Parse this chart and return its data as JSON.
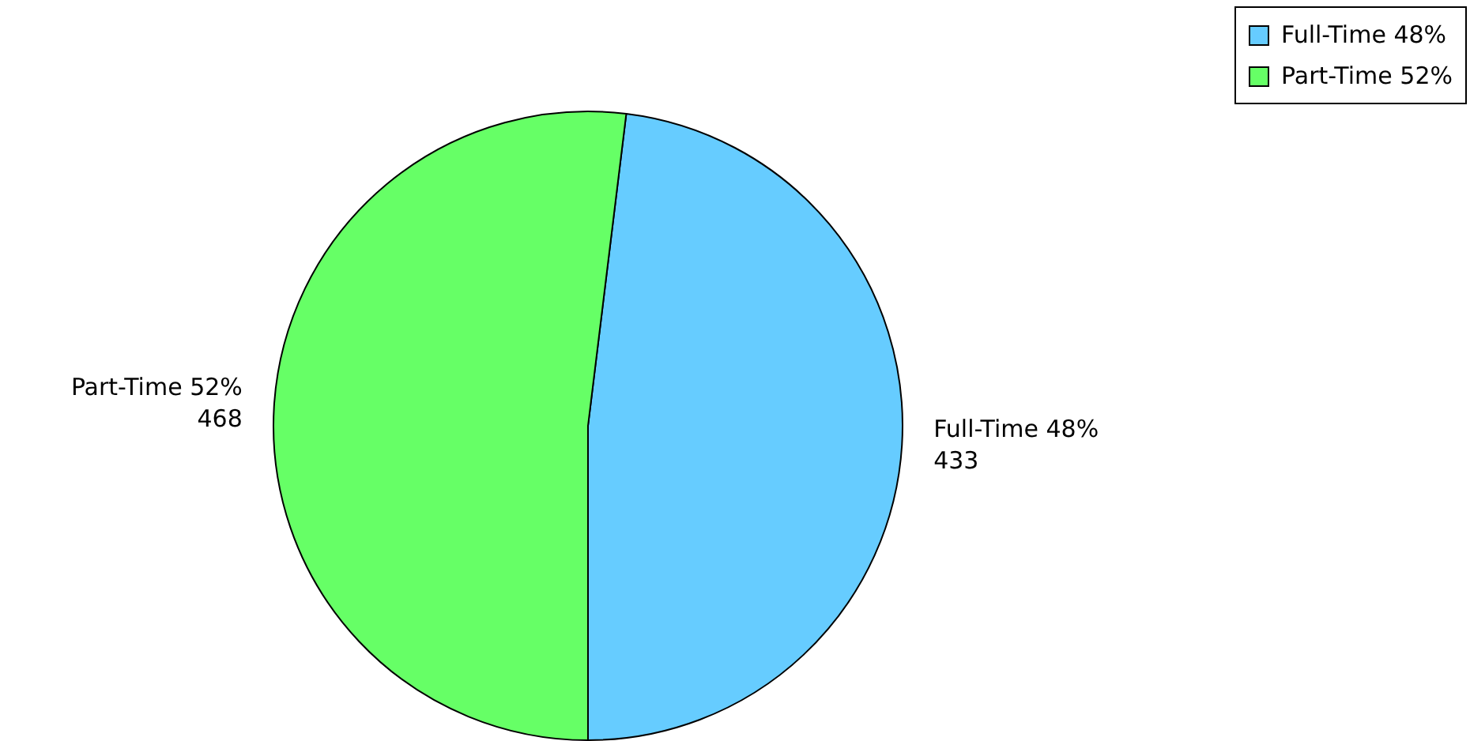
{
  "chart_data": {
    "type": "pie",
    "categories": [
      "Full-Time 48%",
      "Part-Time 52%"
    ],
    "values": [
      433,
      468
    ],
    "colors": [
      "#66ccff",
      "#66ff66"
    ],
    "data_labels": true,
    "legend": "top right"
  }
}
